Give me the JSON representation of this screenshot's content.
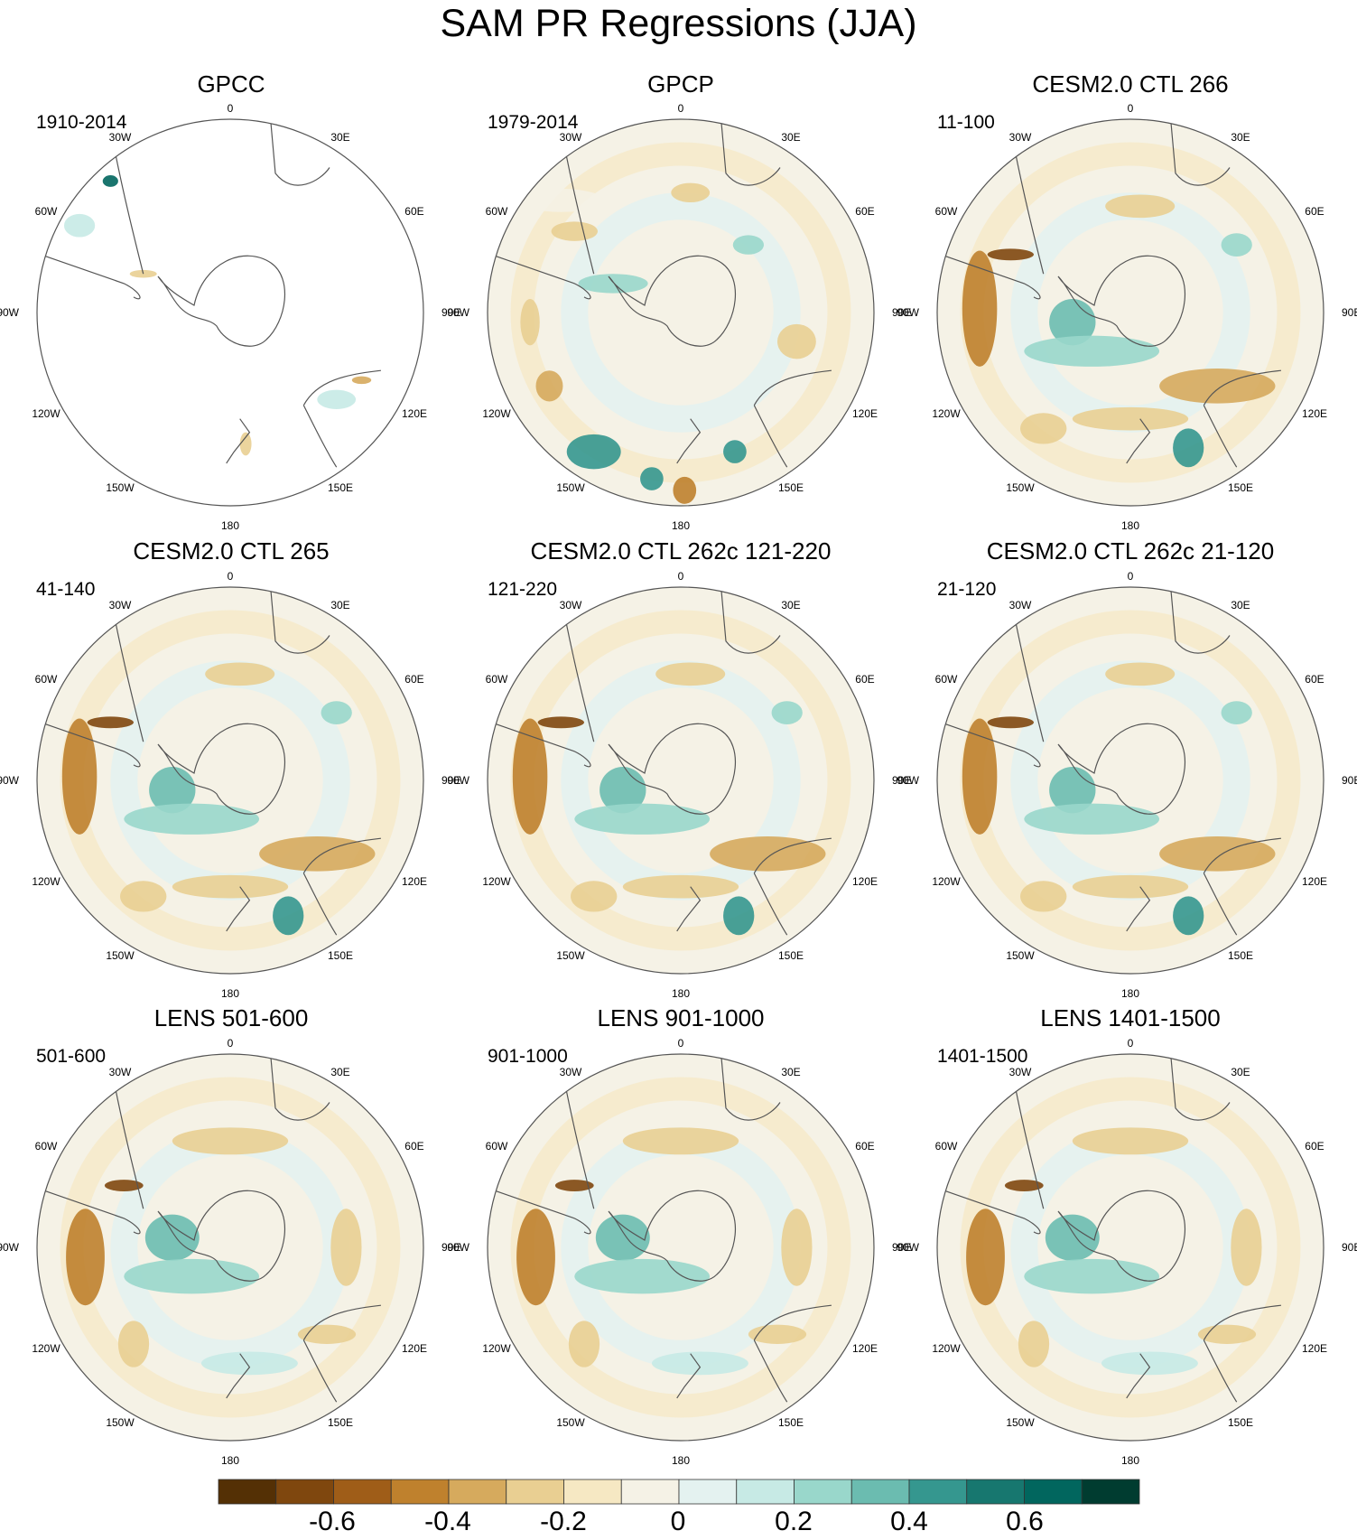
{
  "title": "SAM PR Regressions (JJA)",
  "panels": [
    {
      "title": "GPCC",
      "period": "1910-2014",
      "pattern": "gpcc"
    },
    {
      "title": "GPCP",
      "period": "1979-2014",
      "pattern": "obs"
    },
    {
      "title": "CESM2.0 CTL 266",
      "period": "11-100",
      "pattern": "model"
    },
    {
      "title": "CESM2.0 CTL 265",
      "period": "41-140",
      "pattern": "model"
    },
    {
      "title": "CESM2.0 CTL 262c 121-220",
      "period": "121-220",
      "pattern": "model"
    },
    {
      "title": "CESM2.0 CTL 262c 21-120",
      "period": "21-120",
      "pattern": "model"
    },
    {
      "title": "LENS 501-600",
      "period": "501-600",
      "pattern": "lens"
    },
    {
      "title": "LENS 901-1000",
      "period": "901-1000",
      "pattern": "lens"
    },
    {
      "title": "LENS 1401-1500",
      "period": "1401-1500",
      "pattern": "lens"
    }
  ],
  "longitude_labels": [
    "0",
    "30E",
    "60E",
    "90E",
    "120E",
    "150E",
    "180",
    "150W",
    "120W",
    "90W",
    "60W",
    "30W"
  ],
  "colorbar": {
    "colors": [
      "#543005",
      "#7f470e",
      "#9f5d18",
      "#bf812d",
      "#d6aa5d",
      "#e9cf92",
      "#f6e8c3",
      "#f5f2e6",
      "#e4f2f0",
      "#c7eae5",
      "#99d7cb",
      "#6bbcb0",
      "#35978f",
      "#17776f",
      "#01665e",
      "#003c30"
    ],
    "tick_labels": [
      "-0.6",
      "-0.4",
      "-0.2",
      "0",
      "0.2",
      "0.4",
      "0.6"
    ]
  }
}
